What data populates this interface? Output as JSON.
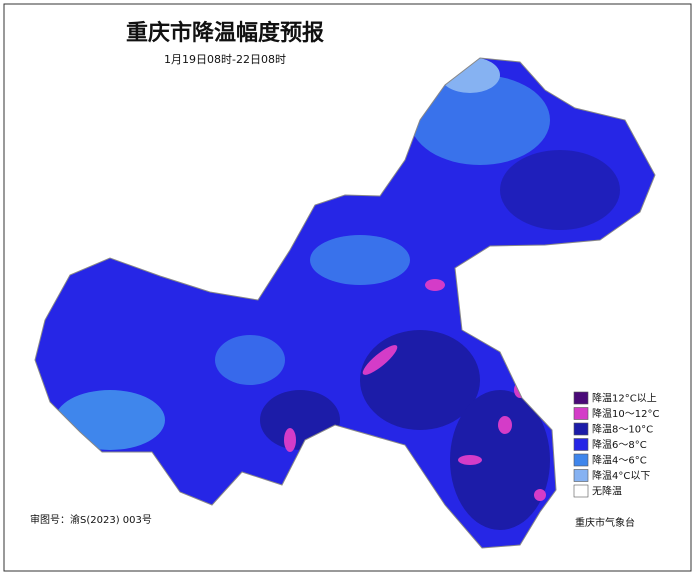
{
  "title": "重庆市降温幅度预报",
  "subtitle": "1月19日08时-22日08时",
  "legend": [
    {
      "label": "降温12°C以上",
      "color": "#4a0a78"
    },
    {
      "label": "降温10～12°C",
      "color": "#d43cc8"
    },
    {
      "label": "降温8～10°C",
      "color": "#1c1ca8"
    },
    {
      "label": "降温6～8°C",
      "color": "#2626e6"
    },
    {
      "label": "降温4～6°C",
      "color": "#3f86ec"
    },
    {
      "label": "降温4°C以下",
      "color": "#86b2f2"
    },
    {
      "label": "无降温",
      "color": "#ffffff"
    }
  ],
  "approval": "审图号：渝S(2023) 003号",
  "issuer": "重庆市气象台"
}
